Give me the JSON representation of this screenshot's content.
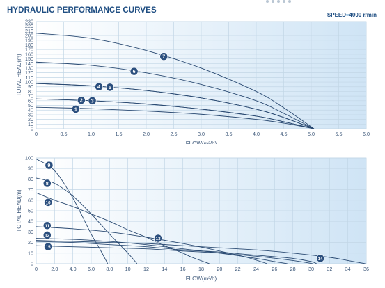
{
  "header": {
    "title": "HYDRAULIC PERFORMANCE CURVES",
    "speed_label": "SPEED",
    "speed_sep": "≈",
    "speed_value": "4000 r/min"
  },
  "colors": {
    "plot_bg_start": "#ffffff",
    "plot_bg_end": "#cfe4f5",
    "grid": "#c2d6e6",
    "curve": "#2a4a72",
    "marker": "#2b4f7e",
    "marker_text": "#ffffff",
    "axis_text": "#3a5577",
    "title": "#1f4e82"
  },
  "chart_data": [
    {
      "type": "line",
      "xlabel": "FLOW(m³/h)",
      "ylabel": "TOTAL HEAD(m)",
      "xlim": [
        0,
        6
      ],
      "ylim": [
        0,
        230
      ],
      "xticks": [
        0,
        0.5,
        1,
        1.5,
        2,
        2.5,
        3,
        3.5,
        4,
        4.5,
        5,
        5.5,
        6
      ],
      "xtick_labels": [
        "0",
        "0.5",
        "1.0",
        "1.5",
        "2.0",
        "2.5",
        "3.0",
        "3.5",
        "4.0",
        "4.5",
        "5.0",
        "5.5",
        "6.0"
      ],
      "yticks": [
        0,
        10,
        20,
        30,
        40,
        50,
        60,
        70,
        80,
        90,
        100,
        110,
        120,
        130,
        140,
        150,
        160,
        170,
        180,
        190,
        200,
        210,
        220,
        230
      ],
      "grid": true,
      "series": [
        {
          "name": "1",
          "x": [
            0,
            1,
            2,
            3,
            4,
            4.5,
            5.05
          ],
          "y": [
            46,
            43,
            38,
            31,
            20,
            12,
            0
          ],
          "label_at": [
            0.72,
            42
          ]
        },
        {
          "name": "2",
          "x": [
            0,
            1,
            2,
            3,
            4,
            4.5,
            5.05
          ],
          "y": [
            64,
            60,
            53,
            42,
            27,
            15,
            0
          ],
          "label_at": [
            0.82,
            61
          ]
        },
        {
          "name": "3",
          "x": [
            0,
            1,
            2,
            3,
            4,
            4.5,
            5.05
          ],
          "y": [
            64,
            60,
            53,
            42,
            27,
            15,
            0
          ],
          "label_at": [
            1.02,
            60
          ]
        },
        {
          "name": "4",
          "x": [
            0,
            1,
            2,
            3,
            4,
            4.5,
            5.05
          ],
          "y": [
            97,
            92,
            82,
            66,
            42,
            24,
            0
          ],
          "label_at": [
            1.14,
            90
          ]
        },
        {
          "name": "5",
          "x": [
            0,
            1,
            2,
            3,
            4,
            4.5,
            5.05
          ],
          "y": [
            97,
            92,
            82,
            66,
            42,
            24,
            0
          ],
          "label_at": [
            1.34,
            89
          ]
        },
        {
          "name": "6",
          "x": [
            0,
            1,
            2,
            3,
            4,
            4.5,
            5.05
          ],
          "y": [
            143,
            136,
            120,
            95,
            60,
            33,
            0
          ],
          "label_at": [
            1.78,
            123
          ]
        },
        {
          "name": "7",
          "x": [
            0,
            1,
            2,
            3,
            4,
            4.5,
            5.05
          ],
          "y": [
            205,
            194,
            168,
            130,
            80,
            45,
            0
          ],
          "label_at": [
            2.32,
            155
          ]
        }
      ]
    },
    {
      "type": "line",
      "xlabel": "FLOW(m³/h)",
      "ylabel": "TOTAL HEAD(m)",
      "xlim": [
        0,
        36
      ],
      "ylim": [
        0,
        100
      ],
      "xticks": [
        0,
        2,
        4,
        6,
        8,
        10,
        12,
        14,
        16,
        18,
        20,
        22,
        24,
        26,
        28,
        30,
        32,
        34,
        36
      ],
      "xtick_labels": [
        "0",
        "2.0",
        "4.0",
        "6.0",
        "8.0",
        "10",
        "12",
        "14",
        "16",
        "18",
        "20",
        "22",
        "24",
        "26",
        "28",
        "30",
        "32",
        "34",
        "36"
      ],
      "yticks": [
        0,
        10,
        20,
        30,
        40,
        50,
        60,
        70,
        80,
        90,
        100
      ],
      "grid": true,
      "series": [
        {
          "name": "9",
          "x": [
            0,
            2,
            4,
            6,
            7,
            7.8
          ],
          "y": [
            99,
            88,
            62,
            28,
            13,
            0
          ],
          "label_at": [
            1.4,
            93
          ]
        },
        {
          "name": "8",
          "x": [
            0,
            2,
            4,
            6,
            8,
            10,
            11
          ],
          "y": [
            81,
            76,
            64,
            47,
            28,
            10,
            0
          ],
          "label_at": [
            1.2,
            76
          ]
        },
        {
          "name": "10",
          "x": [
            0,
            2,
            4,
            6,
            8,
            10,
            12,
            14,
            16,
            17,
            18.9
          ],
          "y": [
            67,
            60,
            54,
            47,
            40,
            32,
            25,
            17,
            10,
            6,
            0
          ],
          "label_at": [
            1.3,
            58
          ]
        },
        {
          "name": "11",
          "x": [
            0,
            4,
            8,
            12,
            16,
            20,
            23,
            25.2
          ],
          "y": [
            35,
            33,
            30,
            25,
            19,
            12,
            6,
            0
          ],
          "label_at": [
            1.2,
            36
          ]
        },
        {
          "name": "12",
          "x": [
            0,
            4,
            8,
            12,
            16,
            20,
            24,
            26,
            27.4
          ],
          "y": [
            24,
            23,
            21,
            18,
            14,
            10,
            5,
            2,
            0
          ],
          "label_at": [
            1.2,
            27
          ]
        },
        {
          "name": "13",
          "x": [
            0,
            4,
            8,
            12,
            16,
            20,
            24,
            28,
            30,
            30.6
          ],
          "y": [
            21,
            20,
            18,
            16,
            13,
            11,
            8,
            5,
            2,
            0
          ],
          "label_at": [
            13.3,
            24
          ]
        },
        {
          "name": "14",
          "x": [
            0,
            4,
            8,
            12,
            16,
            20,
            24,
            28,
            32,
            34,
            35.9
          ],
          "y": [
            22,
            21,
            20,
            19,
            17,
            15,
            13,
            10,
            6,
            3,
            0
          ],
          "label_at": [
            31,
            5
          ]
        },
        {
          "name": "15",
          "x": [
            0,
            4,
            8,
            12,
            16,
            20,
            24,
            28,
            30.2
          ],
          "y": [
            17,
            16,
            15,
            14,
            12,
            10,
            7,
            3,
            0
          ],
          "label_at": [
            1.3,
            16
          ]
        }
      ]
    }
  ]
}
